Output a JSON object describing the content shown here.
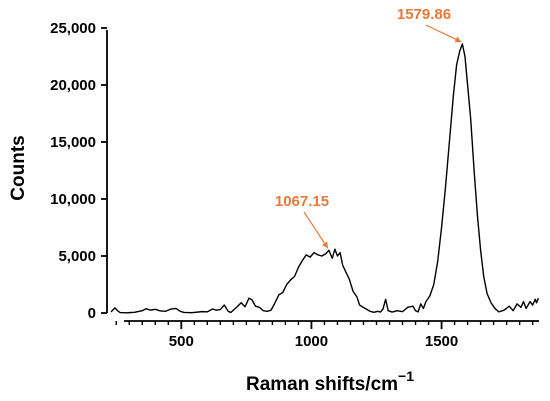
{
  "chart_data": {
    "type": "line",
    "title": "",
    "xlabel": "Raman shifts/cm",
    "xlabel_superscript": "−1",
    "ylabel": "Counts",
    "xlim": [
      225,
      1880
    ],
    "ylim": [
      0,
      25000
    ],
    "x_ticks_major": [
      500,
      1000,
      1500
    ],
    "x_tick_labels": [
      "500",
      "1000",
      "1500"
    ],
    "x_ticks_minor": [
      250,
      300,
      350,
      400,
      450,
      550,
      600,
      650,
      700,
      750,
      800,
      850,
      900,
      950,
      1050,
      1100,
      1150,
      1200,
      1250,
      1300,
      1350,
      1400,
      1450,
      1550,
      1600,
      1650,
      1700,
      1750,
      1800,
      1850
    ],
    "y_ticks": [
      0,
      5000,
      10000,
      15000,
      20000,
      25000
    ],
    "y_tick_labels": [
      "0",
      "5,000",
      "10,000",
      "15,000",
      "20,000",
      "25,000"
    ],
    "grid": false,
    "line_color": "#000000",
    "annotation_color": "#E8793A",
    "annotations": [
      {
        "text": "1067.15",
        "x": 1067.15,
        "y": 5500
      },
      {
        "text": "1579.86",
        "x": 1579.86,
        "y": 23600
      }
    ],
    "series": [
      {
        "points": [
          [
            230,
            100
          ],
          [
            245,
            450
          ],
          [
            255,
            200
          ],
          [
            265,
            40
          ],
          [
            290,
            20
          ],
          [
            320,
            60
          ],
          [
            350,
            200
          ],
          [
            365,
            380
          ],
          [
            380,
            250
          ],
          [
            400,
            320
          ],
          [
            420,
            180
          ],
          [
            440,
            150
          ],
          [
            460,
            350
          ],
          [
            480,
            400
          ],
          [
            495,
            160
          ],
          [
            510,
            50
          ],
          [
            540,
            30
          ],
          [
            580,
            120
          ],
          [
            600,
            100
          ],
          [
            620,
            350
          ],
          [
            635,
            250
          ],
          [
            650,
            300
          ],
          [
            665,
            700
          ],
          [
            680,
            150
          ],
          [
            690,
            40
          ],
          [
            710,
            450
          ],
          [
            730,
            900
          ],
          [
            745,
            550
          ],
          [
            760,
            1300
          ],
          [
            772,
            1150
          ],
          [
            785,
            600
          ],
          [
            800,
            500
          ],
          [
            815,
            200
          ],
          [
            830,
            150
          ],
          [
            845,
            250
          ],
          [
            860,
            900
          ],
          [
            875,
            1600
          ],
          [
            890,
            1800
          ],
          [
            905,
            2500
          ],
          [
            920,
            2900
          ],
          [
            935,
            3200
          ],
          [
            950,
            4000
          ],
          [
            965,
            4600
          ],
          [
            980,
            5100
          ],
          [
            995,
            4900
          ],
          [
            1010,
            5300
          ],
          [
            1025,
            5100
          ],
          [
            1040,
            5000
          ],
          [
            1055,
            5200
          ],
          [
            1067,
            5500
          ],
          [
            1080,
            4800
          ],
          [
            1090,
            5600
          ],
          [
            1100,
            5000
          ],
          [
            1110,
            5300
          ],
          [
            1120,
            4200
          ],
          [
            1130,
            3700
          ],
          [
            1145,
            3000
          ],
          [
            1160,
            1900
          ],
          [
            1175,
            1400
          ],
          [
            1185,
            700
          ],
          [
            1195,
            550
          ],
          [
            1210,
            350
          ],
          [
            1225,
            150
          ],
          [
            1240,
            60
          ],
          [
            1255,
            150
          ],
          [
            1265,
            80
          ],
          [
            1275,
            350
          ],
          [
            1285,
            1200
          ],
          [
            1295,
            200
          ],
          [
            1310,
            80
          ],
          [
            1330,
            200
          ],
          [
            1350,
            120
          ],
          [
            1370,
            500
          ],
          [
            1390,
            600
          ],
          [
            1400,
            200
          ],
          [
            1410,
            100
          ],
          [
            1420,
            800
          ],
          [
            1430,
            400
          ],
          [
            1440,
            1000
          ],
          [
            1455,
            1500
          ],
          [
            1470,
            2500
          ],
          [
            1485,
            4500
          ],
          [
            1500,
            7500
          ],
          [
            1515,
            11000
          ],
          [
            1530,
            15000
          ],
          [
            1545,
            19000
          ],
          [
            1558,
            21800
          ],
          [
            1570,
            23000
          ],
          [
            1580,
            23600
          ],
          [
            1590,
            22500
          ],
          [
            1600,
            20000
          ],
          [
            1612,
            17000
          ],
          [
            1625,
            12500
          ],
          [
            1638,
            8500
          ],
          [
            1650,
            5500
          ],
          [
            1662,
            3200
          ],
          [
            1675,
            1700
          ],
          [
            1690,
            900
          ],
          [
            1705,
            400
          ],
          [
            1720,
            100
          ],
          [
            1740,
            250
          ],
          [
            1760,
            600
          ],
          [
            1775,
            200
          ],
          [
            1790,
            800
          ],
          [
            1805,
            500
          ],
          [
            1815,
            1000
          ],
          [
            1825,
            400
          ],
          [
            1840,
            1000
          ],
          [
            1850,
            700
          ],
          [
            1860,
            1200
          ],
          [
            1865,
            900
          ],
          [
            1872,
            1300
          ]
        ]
      }
    ]
  }
}
